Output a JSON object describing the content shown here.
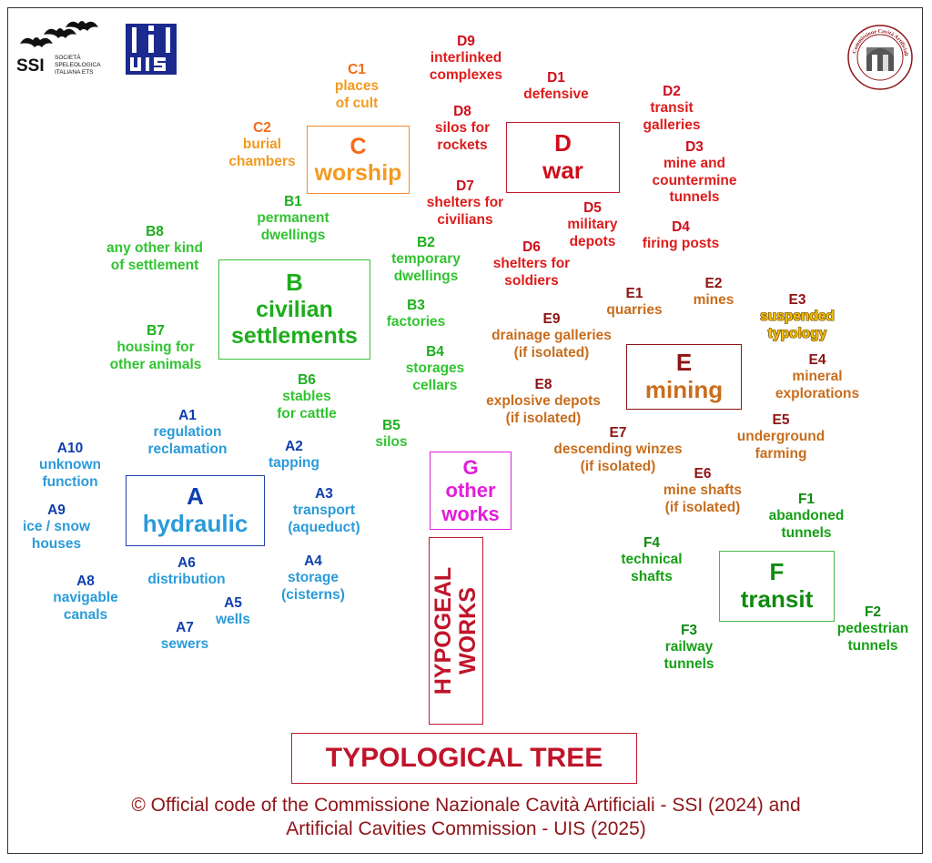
{
  "logos": {
    "ssi": {
      "name": "SSI",
      "subtitle": [
        "SOCIETÀ",
        "SPELEOLOGICA",
        "ITALIANA ETS"
      ]
    },
    "uis": {
      "name": "UIS"
    },
    "ccn": {
      "name": "Commissione Cavità Artificiali"
    }
  },
  "colors": {
    "A": "#0f3fae",
    "B": "#1cae1c",
    "C": "#f56a16",
    "D": "#cf0e1a",
    "E": "#8e1414",
    "F": "#0f8a0f",
    "G": "#e21ed9",
    "main": "#c0142a"
  },
  "categories": {
    "A": {
      "code": "A",
      "label": "hydraulic"
    },
    "B": {
      "code": "B",
      "label1": "civilian",
      "label2": "settlements"
    },
    "C": {
      "code": "C",
      "label": "worship"
    },
    "D": {
      "code": "D",
      "label": "war"
    },
    "E": {
      "code": "E",
      "label": "mining"
    },
    "F": {
      "code": "F",
      "label": "transit"
    },
    "G": {
      "code": "G",
      "label1": "other",
      "label2": "works"
    }
  },
  "nodes": {
    "A1": {
      "code": "A1",
      "l1": "regulation",
      "l2": "reclamation"
    },
    "A2": {
      "code": "A2",
      "l1": "tapping"
    },
    "A3": {
      "code": "A3",
      "l1": "transport",
      "l2": "(aqueduct)"
    },
    "A4": {
      "code": "A4",
      "l1": "storage",
      "l2": "(cisterns)"
    },
    "A5": {
      "code": "A5",
      "l1": "wells"
    },
    "A6": {
      "code": "A6",
      "l1": "distribution"
    },
    "A7": {
      "code": "A7",
      "l1": "sewers"
    },
    "A8": {
      "code": "A8",
      "l1": "navigable",
      "l2": "canals"
    },
    "A9": {
      "code": "A9",
      "l1": "ice / snow",
      "l2": "houses"
    },
    "A10": {
      "code": "A10",
      "l1": "unknown",
      "l2": "function"
    },
    "B1": {
      "code": "B1",
      "l1": "permanent",
      "l2": "dwellings"
    },
    "B2": {
      "code": "B2",
      "l1": "temporary",
      "l2": "dwellings"
    },
    "B3": {
      "code": "B3",
      "l1": "factories"
    },
    "B4": {
      "code": "B4",
      "l1": "storages",
      "l2": "cellars"
    },
    "B5": {
      "code": "B5",
      "l1": "silos"
    },
    "B6": {
      "code": "B6",
      "l1": "stables",
      "l2": "for cattle"
    },
    "B7": {
      "code": "B7",
      "l1": "housing for",
      "l2": "other animals"
    },
    "B8": {
      "code": "B8",
      "l1": "any other kind",
      "l2": "of settlement"
    },
    "C1": {
      "code": "C1",
      "l1": "places",
      "l2": "of cult"
    },
    "C2": {
      "code": "C2",
      "l1": "burial",
      "l2": "chambers"
    },
    "D1": {
      "code": "D1",
      "l1": "defensive"
    },
    "D2": {
      "code": "D2",
      "l1": "transit",
      "l2": "galleries"
    },
    "D3": {
      "code": "D3",
      "l1": "mine and",
      "l2": "countermine",
      "l3": "tunnels"
    },
    "D4": {
      "code": "D4",
      "l1": "firing posts"
    },
    "D5": {
      "code": "D5",
      "l1": "military",
      "l2": "depots"
    },
    "D6": {
      "code": "D6",
      "l1": "shelters for",
      "l2": "soldiers"
    },
    "D7": {
      "code": "D7",
      "l1": "shelters for",
      "l2": "civilians"
    },
    "D8": {
      "code": "D8",
      "l1": "silos for",
      "l2": "rockets"
    },
    "D9": {
      "code": "D9",
      "l1": "interlinked",
      "l2": "complexes"
    },
    "E1": {
      "code": "E1",
      "l1": "quarries"
    },
    "E2": {
      "code": "E2",
      "l1": "mines"
    },
    "E3": {
      "code": "E3",
      "l1": "suspended",
      "l2": "typology"
    },
    "E4": {
      "code": "E4",
      "l1": "mineral",
      "l2": "explorations"
    },
    "E5": {
      "code": "E5",
      "l1": "underground",
      "l2": "farming"
    },
    "E6": {
      "code": "E6",
      "l1": "mine shafts",
      "l2": "(if isolated)"
    },
    "E7": {
      "code": "E7",
      "l1": "descending winzes",
      "l2": "(if isolated)"
    },
    "E8": {
      "code": "E8",
      "l1": "explosive depots",
      "l2": "(if isolated)"
    },
    "E9": {
      "code": "E9",
      "l1": "drainage galleries",
      "l2": "(if isolated)"
    },
    "F1": {
      "code": "F1",
      "l1": "abandoned",
      "l2": "tunnels"
    },
    "F2": {
      "code": "F2",
      "l1": "pedestrian",
      "l2": "tunnels"
    },
    "F3": {
      "code": "F3",
      "l1": "railway",
      "l2": "tunnels"
    },
    "F4": {
      "code": "F4",
      "l1": "technical",
      "l2": "shafts"
    }
  },
  "trunk": {
    "line1": "HYPOGEAL",
    "line2": "WORKS"
  },
  "title": "TYPOLOGICAL TREE",
  "footer": {
    "line1": "© Official code of the Commissione Nazionale Cavità Artificiali - SSI (2024) and",
    "line2": "Artificial Cavities Commission - UIS (2025)"
  }
}
